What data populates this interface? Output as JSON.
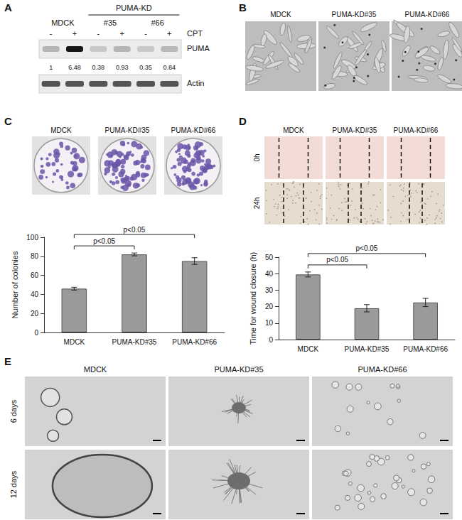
{
  "panels": {
    "A": {
      "label": "A",
      "treatment": "CPT",
      "bands": [
        "PUMA",
        "Actin"
      ],
      "super_group": {
        "label": "PUMA-KD",
        "groups": [
          "#35",
          "#66"
        ]
      },
      "groups": [
        {
          "name": "MDCK",
          "cpt": [
            "-",
            "+"
          ],
          "ratios": [
            1,
            6.48
          ]
        },
        {
          "name": "#35",
          "cpt": [
            "-",
            "+"
          ],
          "ratios": [
            0.38,
            0.93
          ]
        },
        {
          "name": "#66",
          "cpt": [
            "-",
            "+"
          ],
          "ratios": [
            0.35,
            0.84
          ]
        }
      ]
    },
    "B": {
      "label": "B",
      "images": [
        "MDCK",
        "PUMA-KD#35",
        "PUMA-KD#66"
      ]
    },
    "C": {
      "label": "C",
      "images": [
        "MDCK",
        "PUMA-KD#35",
        "PUMA-KD#66"
      ]
    },
    "D": {
      "label": "D",
      "images": [
        "MDCK",
        "PUMA-KD#35",
        "PUMA-KD#66"
      ],
      "rows": [
        "0h",
        "24h"
      ]
    },
    "E": {
      "label": "E",
      "images": [
        "MDCK",
        "PUMA-KD#35",
        "PUMA-KD#66"
      ],
      "rows": [
        "6 days",
        "12 days"
      ]
    }
  },
  "chart_data": [
    {
      "type": "bar",
      "categories": [
        "MDCK",
        "PUMA-KD#35",
        "PUMA-KD#66"
      ],
      "values": [
        46,
        82,
        75
      ],
      "errors": [
        1.5,
        1.5,
        3.5
      ],
      "color": "#9a9a9a",
      "ylabel": "Number of colonies",
      "ylim": [
        0,
        100
      ],
      "yticks": [
        0,
        20,
        40,
        60,
        80,
        100
      ],
      "grid": false,
      "annotations": [
        {
          "text": "p<0.05",
          "from": "MDCK",
          "to": "PUMA-KD#35"
        },
        {
          "text": "p<0.05",
          "from": "MDCK",
          "to": "PUMA-KD#66"
        }
      ]
    },
    {
      "type": "bar",
      "categories": [
        "MDCK",
        "PUMA-KD#35",
        "PUMA-KD#66"
      ],
      "values": [
        39.5,
        19,
        22.5
      ],
      "errors": [
        1.5,
        2.2,
        2.5
      ],
      "color": "#9a9a9a",
      "ylabel": "Time for wound closure (h)",
      "ylim": [
        0,
        50
      ],
      "yticks": [
        0,
        10,
        20,
        30,
        40,
        50
      ],
      "grid": false,
      "annotations": [
        {
          "text": "p<0.05",
          "from": "MDCK",
          "to": "PUMA-KD#35"
        },
        {
          "text": "p<0.05",
          "from": "MDCK",
          "to": "PUMA-KD#66"
        }
      ]
    }
  ]
}
